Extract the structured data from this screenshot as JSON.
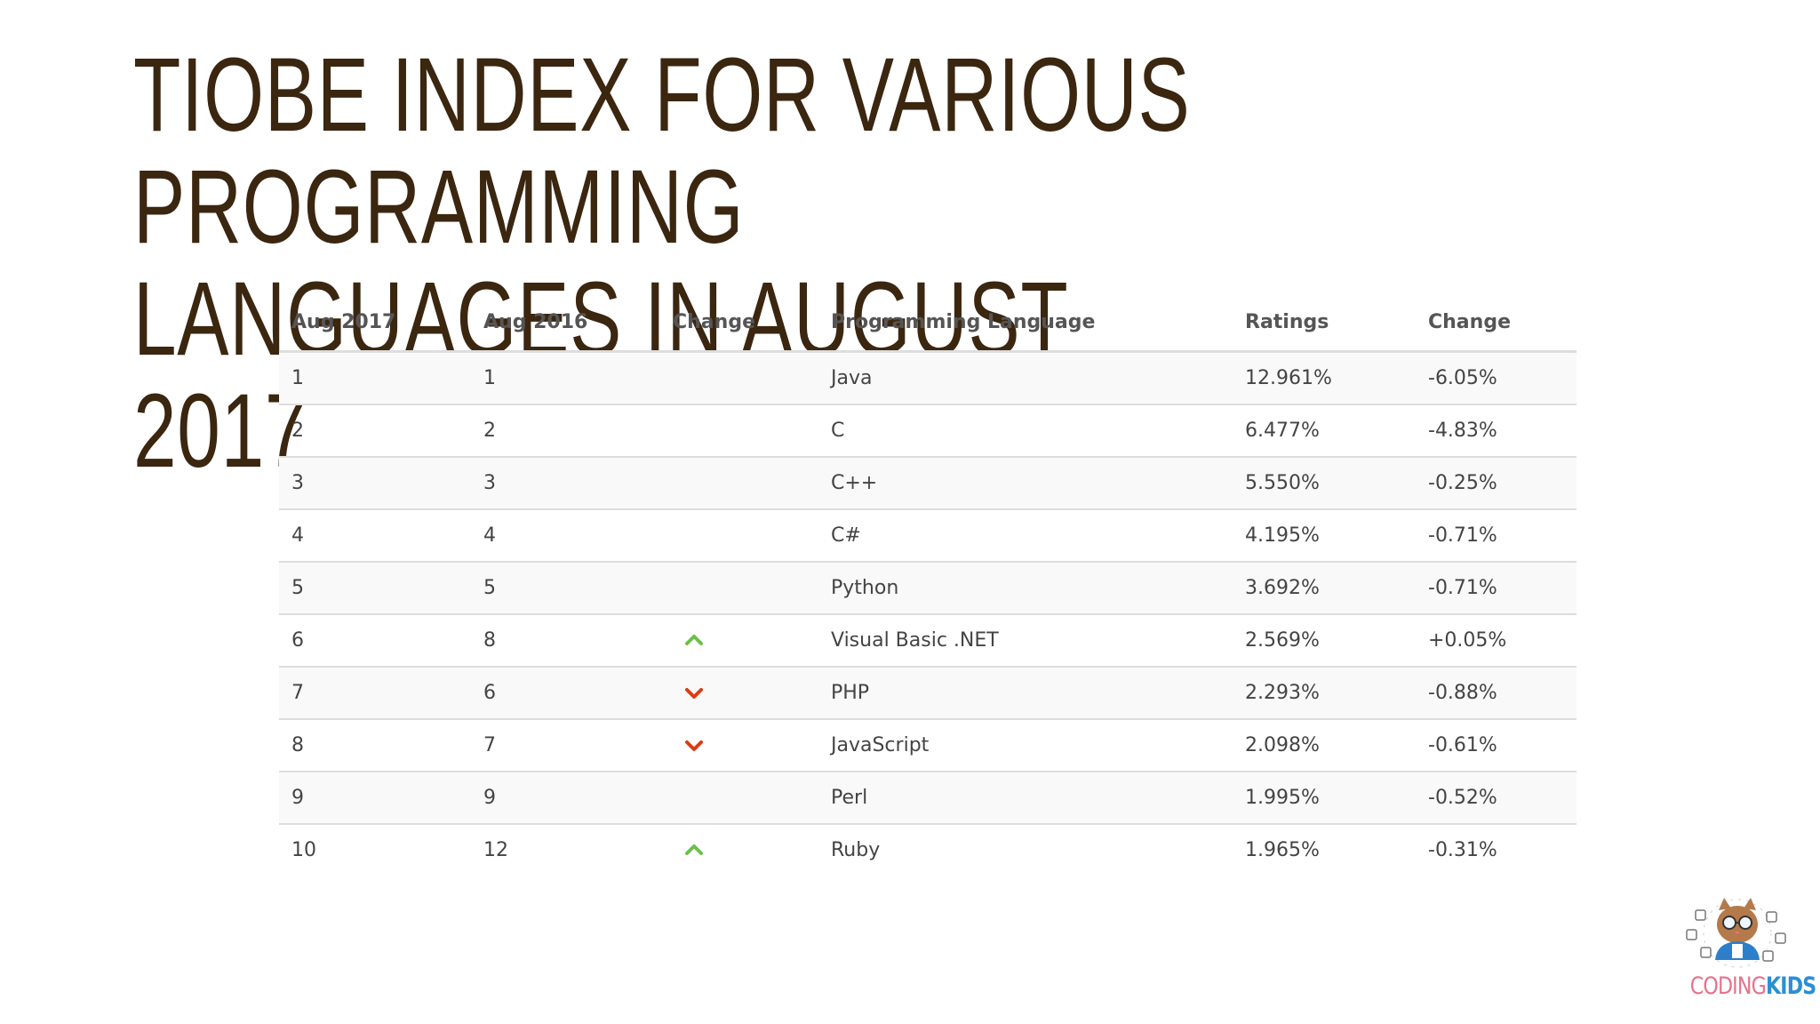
{
  "title": "TIOBE Index for Various Programming Languages in August 2017",
  "table": {
    "headers": [
      "Aug 2017",
      "Aug 2016",
      "Change",
      "Programming Language",
      "Ratings",
      "Change"
    ],
    "rows": [
      {
        "rank": "1",
        "prev_rank": "1",
        "trend": "none",
        "language": "Java",
        "rating": "12.961%",
        "change": "-6.05%"
      },
      {
        "rank": "2",
        "prev_rank": "2",
        "trend": "none",
        "language": "C",
        "rating": "6.477%",
        "change": "-4.83%"
      },
      {
        "rank": "3",
        "prev_rank": "3",
        "trend": "none",
        "language": "C++",
        "rating": "5.550%",
        "change": "-0.25%"
      },
      {
        "rank": "4",
        "prev_rank": "4",
        "trend": "none",
        "language": "C#",
        "rating": "4.195%",
        "change": "-0.71%"
      },
      {
        "rank": "5",
        "prev_rank": "5",
        "trend": "none",
        "language": "Python",
        "rating": "3.692%",
        "change": "-0.71%"
      },
      {
        "rank": "6",
        "prev_rank": "8",
        "trend": "up",
        "language": "Visual Basic .NET",
        "rating": "2.569%",
        "change": "+0.05%"
      },
      {
        "rank": "7",
        "prev_rank": "6",
        "trend": "down",
        "language": "PHP",
        "rating": "2.293%",
        "change": "-0.88%"
      },
      {
        "rank": "8",
        "prev_rank": "7",
        "trend": "down",
        "language": "JavaScript",
        "rating": "2.098%",
        "change": "-0.61%"
      },
      {
        "rank": "9",
        "prev_rank": "9",
        "trend": "none",
        "language": "Perl",
        "rating": "1.995%",
        "change": "-0.52%"
      },
      {
        "rank": "10",
        "prev_rank": "12",
        "trend": "up",
        "language": "Ruby",
        "rating": "1.965%",
        "change": "-0.31%"
      }
    ]
  },
  "colors": {
    "title": "#3b2610",
    "trend_up": "#6cc04a",
    "trend_down": "#dd3b14"
  },
  "logo": {
    "text_part1": "CODING",
    "text_part2": "KIDS",
    "icon": "cat-mascot-icon"
  }
}
